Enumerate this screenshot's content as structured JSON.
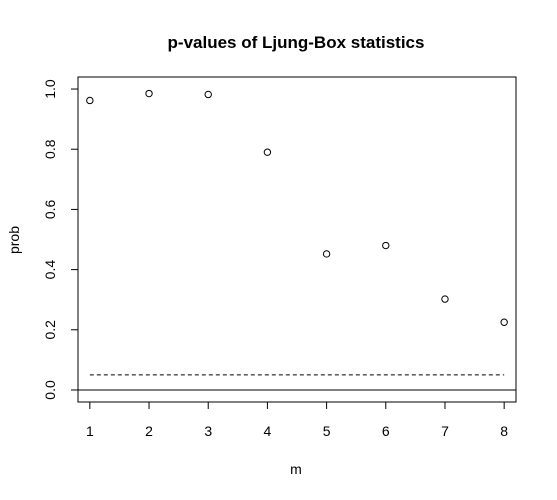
{
  "chart_data": {
    "type": "scatter",
    "title": "p-values of Ljung-Box statistics",
    "xlabel": "m",
    "ylabel": "prob",
    "x": [
      1,
      2,
      3,
      4,
      5,
      6,
      7,
      8
    ],
    "y": [
      0.962,
      0.985,
      0.982,
      0.79,
      0.452,
      0.48,
      0.302,
      0.225
    ],
    "xlim": [
      0.8,
      8.2
    ],
    "ylim": [
      -0.04,
      1.04
    ],
    "xticks": [
      "1",
      "2",
      "3",
      "4",
      "5",
      "6",
      "7",
      "8"
    ],
    "yticks": [
      "0.0",
      "0.2",
      "0.4",
      "0.6",
      "0.8",
      "1.0"
    ],
    "reference_lines": [
      {
        "y": 0.05,
        "style": "dashed"
      },
      {
        "y": 0.0,
        "style": "solid"
      }
    ],
    "grid": false,
    "legend": "none"
  }
}
